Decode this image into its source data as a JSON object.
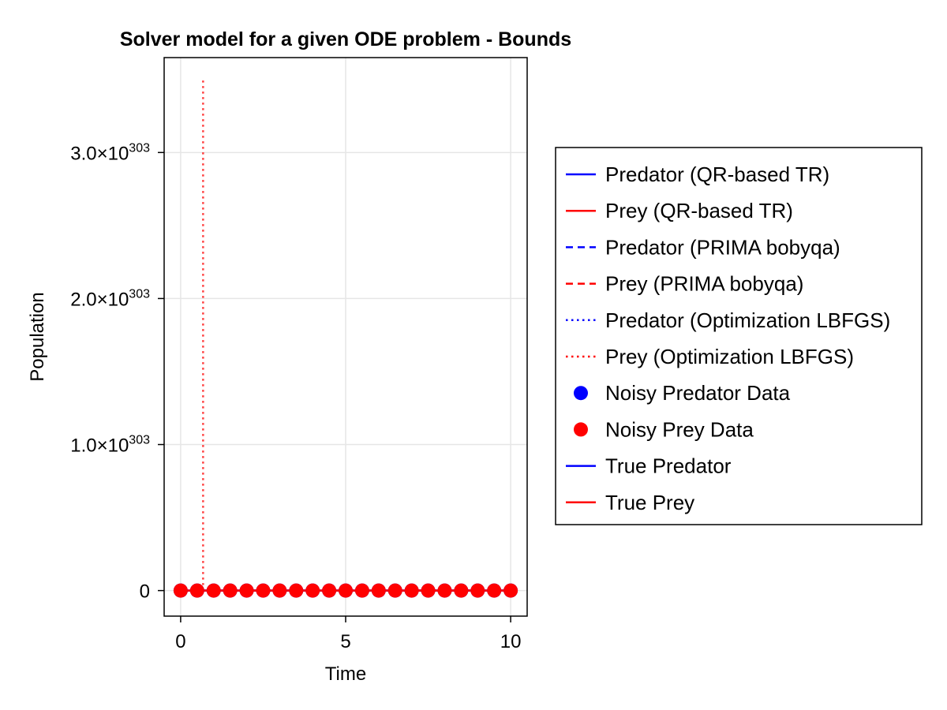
{
  "chart_data": {
    "type": "line",
    "title": "Solver model for a given ODE problem - Bounds",
    "xlabel": "Time",
    "ylabel": "Population",
    "xlim": [
      -0.5,
      10.5
    ],
    "ylim": [
      -1.75e+302,
      3.65e+303
    ],
    "x_ticks": [
      0,
      5,
      10
    ],
    "y_ticks": [
      {
        "value": 0,
        "mantissa": "0",
        "exponent": ""
      },
      {
        "value": 1e+303,
        "mantissa": "1.0×10",
        "exponent": "303"
      },
      {
        "value": 2e+303,
        "mantissa": "2.0×10",
        "exponent": "303"
      },
      {
        "value": 3e+303,
        "mantissa": "3.0×10",
        "exponent": "303"
      }
    ],
    "grid": true,
    "legend_position": "right",
    "spike": {
      "series": "Prey (Optimization LBFGS)",
      "x": 0.68,
      "y_min": 0,
      "y_max": 3.5e+303
    },
    "noisy_data_x": [
      0,
      0.5,
      1,
      1.5,
      2,
      2.5,
      3,
      3.5,
      4,
      4.5,
      5,
      5.5,
      6,
      6.5,
      7,
      7.5,
      8,
      8.5,
      9,
      9.5,
      10
    ],
    "noisy_data_y": [
      0,
      0,
      0,
      0,
      0,
      0,
      0,
      0,
      0,
      0,
      0,
      0,
      0,
      0,
      0,
      0,
      0,
      0,
      0,
      0,
      0
    ],
    "series": [
      {
        "name": "Predator (QR-based TR)",
        "color": "#0000ff",
        "style": "solid",
        "marker": "line"
      },
      {
        "name": "Prey (QR-based TR)",
        "color": "#ff0000",
        "style": "solid",
        "marker": "line"
      },
      {
        "name": "Predator (PRIMA bobyqa)",
        "color": "#0000ff",
        "style": "dashed",
        "marker": "line"
      },
      {
        "name": "Prey (PRIMA bobyqa)",
        "color": "#ff0000",
        "style": "dashed",
        "marker": "line"
      },
      {
        "name": "Predator (Optimization LBFGS)",
        "color": "#0000ff",
        "style": "dotted",
        "marker": "line"
      },
      {
        "name": "Prey (Optimization LBFGS)",
        "color": "#ff0000",
        "style": "dotted",
        "marker": "line"
      },
      {
        "name": "Noisy Predator Data",
        "color": "#0000ff",
        "style": "none",
        "marker": "circle"
      },
      {
        "name": "Noisy Prey Data",
        "color": "#ff0000",
        "style": "none",
        "marker": "circle"
      },
      {
        "name": "True Predator",
        "color": "#0000ff",
        "style": "solid",
        "marker": "line"
      },
      {
        "name": "True Prey",
        "color": "#ff0000",
        "style": "solid",
        "marker": "line"
      }
    ]
  }
}
